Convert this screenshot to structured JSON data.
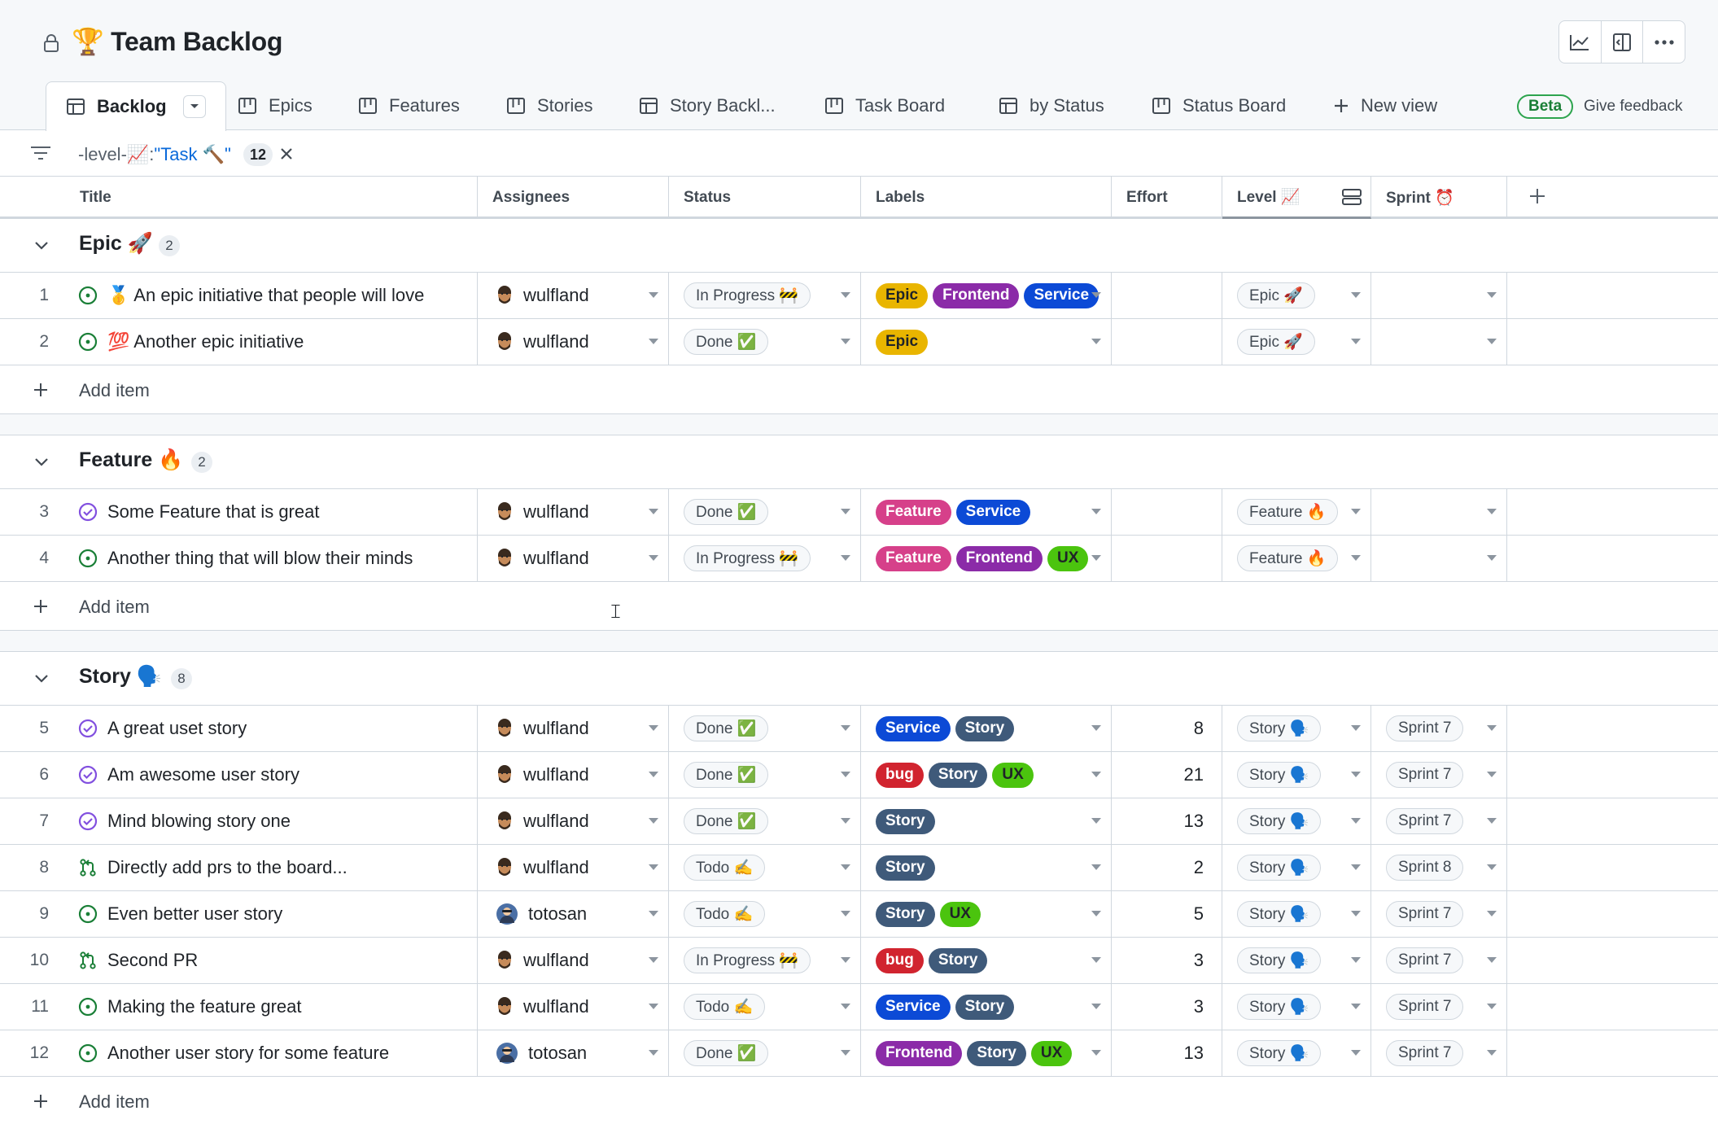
{
  "header": {
    "title": "🏆 Team Backlog",
    "lock_icon": "lock-icon",
    "tools": [
      "chart-icon",
      "layout-icon",
      "more-icon"
    ]
  },
  "tabs": [
    {
      "label": "Backlog",
      "icon": "table-icon",
      "active": true
    },
    {
      "label": "Epics",
      "icon": "board-icon"
    },
    {
      "label": "Features",
      "icon": "board-icon"
    },
    {
      "label": "Stories",
      "icon": "board-icon"
    },
    {
      "label": "Story Backl...",
      "icon": "table-icon"
    },
    {
      "label": "Task Board",
      "icon": "board-icon"
    },
    {
      "label": "by Status",
      "icon": "table-icon"
    },
    {
      "label": "Status Board",
      "icon": "board-icon"
    },
    {
      "label": "New view",
      "icon": "plus-icon"
    }
  ],
  "beta_label": "Beta",
  "feedback_label": "Give feedback",
  "filter": {
    "prefix": "-level-📈:",
    "value": "\"Task 🔨\"",
    "count": "12"
  },
  "columns": [
    "Title",
    "Assignees",
    "Status",
    "Labels",
    "Effort",
    "Level 📈",
    "Sprint ⏰"
  ],
  "groups": [
    {
      "name": "Epic 🚀",
      "count": "2",
      "add_label": "Add item",
      "rows": [
        {
          "num": "1",
          "title": "🥇 An epic initiative that people will love",
          "type": "issue-open",
          "assignee": "wulfland",
          "status": "In Progress 🚧",
          "labels": [
            "Epic",
            "Frontend",
            "Service"
          ],
          "effort": "",
          "level": "Epic 🚀",
          "sprint": ""
        },
        {
          "num": "2",
          "title": "💯 Another epic initiative",
          "type": "issue-open",
          "assignee": "wulfland",
          "status": "Done ✅",
          "labels": [
            "Epic"
          ],
          "effort": "",
          "level": "Epic 🚀",
          "sprint": ""
        }
      ]
    },
    {
      "name": "Feature 🔥",
      "count": "2",
      "add_label": "Add item",
      "rows": [
        {
          "num": "3",
          "title": "Some Feature that is great",
          "type": "issue-closed",
          "assignee": "wulfland",
          "status": "Done ✅",
          "labels": [
            "Feature",
            "Service"
          ],
          "effort": "",
          "level": "Feature 🔥",
          "sprint": ""
        },
        {
          "num": "4",
          "title": "Another thing that will blow their minds",
          "type": "issue-open",
          "assignee": "wulfland",
          "status": "In Progress 🚧",
          "labels": [
            "Feature",
            "Frontend",
            "UX"
          ],
          "effort": "",
          "level": "Feature 🔥",
          "sprint": ""
        }
      ]
    },
    {
      "name": "Story 🗣️",
      "count": "8",
      "add_label": "Add item",
      "rows": [
        {
          "num": "5",
          "title": "A great uset story",
          "type": "issue-closed",
          "assignee": "wulfland",
          "status": "Done ✅",
          "labels": [
            "Service",
            "Story"
          ],
          "effort": "8",
          "level": "Story 🗣️",
          "sprint": "Sprint 7"
        },
        {
          "num": "6",
          "title": "Am awesome user story",
          "type": "issue-closed",
          "assignee": "wulfland",
          "status": "Done ✅",
          "labels": [
            "bug",
            "Story",
            "UX"
          ],
          "effort": "21",
          "level": "Story 🗣️",
          "sprint": "Sprint 7"
        },
        {
          "num": "7",
          "title": "Mind blowing story one",
          "type": "issue-closed",
          "assignee": "wulfland",
          "status": "Done ✅",
          "labels": [
            "Story"
          ],
          "effort": "13",
          "level": "Story 🗣️",
          "sprint": "Sprint 7"
        },
        {
          "num": "8",
          "title": "Directly add prs to the board...",
          "type": "pull-request",
          "assignee": "wulfland",
          "status": "Todo ✍️",
          "labels": [
            "Story"
          ],
          "effort": "2",
          "level": "Story 🗣️",
          "sprint": "Sprint 8"
        },
        {
          "num": "9",
          "title": "Even better user story",
          "type": "issue-open",
          "assignee": "totosan",
          "status": "Todo ✍️",
          "labels": [
            "Story",
            "UX"
          ],
          "effort": "5",
          "level": "Story 🗣️",
          "sprint": "Sprint 7"
        },
        {
          "num": "10",
          "title": "Second PR",
          "type": "pull-request",
          "assignee": "wulfland",
          "status": "In Progress 🚧",
          "labels": [
            "bug",
            "Story"
          ],
          "effort": "3",
          "level": "Story 🗣️",
          "sprint": "Sprint 7"
        },
        {
          "num": "11",
          "title": "Making the feature great",
          "type": "issue-open",
          "assignee": "wulfland",
          "status": "Todo ✍️",
          "labels": [
            "Service",
            "Story"
          ],
          "effort": "3",
          "level": "Story 🗣️",
          "sprint": "Sprint 7"
        },
        {
          "num": "12",
          "title": "Another user story for some feature",
          "type": "issue-open",
          "assignee": "totosan",
          "status": "Done ✅",
          "labels": [
            "Frontend",
            "Story",
            "UX"
          ],
          "effort": "13",
          "level": "Story 🗣️",
          "sprint": "Sprint 7"
        }
      ]
    }
  ],
  "colors": {
    "Epic": "#e9b500",
    "Frontend": "#8b2ba8",
    "Service": "#0c4ad6",
    "Feature": "#d6408a",
    "UX": "#4bc40e",
    "Story": "#3f5a7a",
    "bug": "#d1242f",
    "open": "#1a7f37",
    "closed": "#8250df"
  }
}
